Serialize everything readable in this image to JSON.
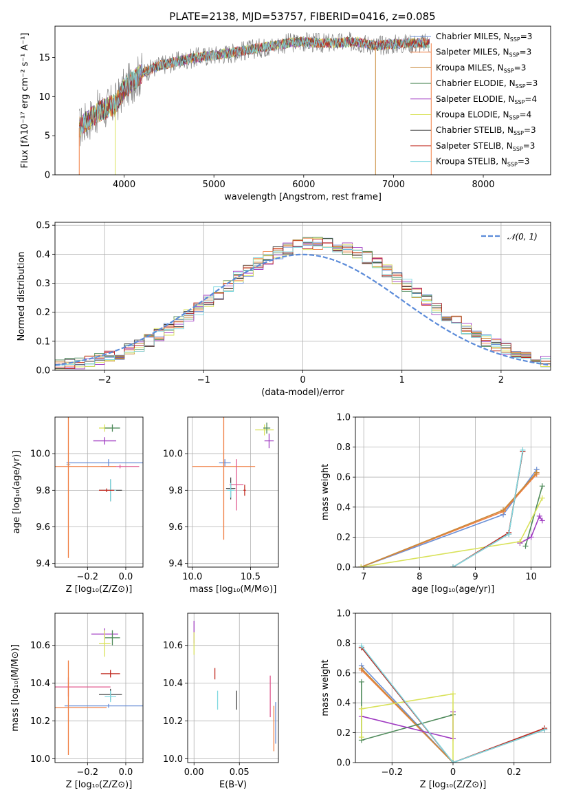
{
  "figure": {
    "title": "PLATE=2138, MJD=53757, FIBERID=0416, z=0.085"
  },
  "chart_data": [
    {
      "id": "spectrum",
      "type": "line",
      "title": "PLATE=2138, MJD=53757, FIBERID=0416, z=0.085",
      "xlabel": "wavelength [Angstrom, rest frame]",
      "ylabel": "Flux [fλ10⁻¹⁷ erg cm⁻² s⁻¹ A⁻¹]",
      "xlim": [
        3230,
        8750
      ],
      "ylim": [
        0,
        19
      ],
      "xticks": [
        4000,
        5000,
        6000,
        7000,
        8000
      ],
      "yticks": [
        0,
        5,
        10,
        15
      ],
      "grid": false,
      "legend_position": "right",
      "series": [
        {
          "name": "Chabrier MILES, N_SSP=3",
          "label_main": "Chabrier MILES, N",
          "label_sub": "SSP",
          "label_tail": "=3",
          "color": "#6a8fd6"
        },
        {
          "name": "Salpeter MILES, N_SSP=3",
          "label_main": "Salpeter MILES, N",
          "label_sub": "SSP",
          "label_tail": "=3",
          "color": "#f07e42"
        },
        {
          "name": "Kroupa MILES, N_SSP=3",
          "label_main": "Kroupa MILES, N",
          "label_sub": "SSP",
          "label_tail": "=3",
          "color": "#c98a3a"
        },
        {
          "name": "Chabrier ELODIE, N_SSP=3",
          "label_main": "Chabrier ELODIE, N",
          "label_sub": "SSP",
          "label_tail": "=3",
          "color": "#4f8a5b"
        },
        {
          "name": "Salpeter ELODIE, N_SSP=4",
          "label_main": "Salpeter ELODIE, N",
          "label_sub": "SSP",
          "label_tail": "=4",
          "color": "#a03cc2"
        },
        {
          "name": "Kroupa ELODIE, N_SSP=4",
          "label_main": "Kroupa ELODIE, N",
          "label_sub": "SSP",
          "label_tail": "=4",
          "color": "#d9e25a"
        },
        {
          "name": "Chabrier STELIB, N_SSP=3",
          "label_main": "Chabrier STELIB, N",
          "label_sub": "SSP",
          "label_tail": "=3",
          "color": "#444444"
        },
        {
          "name": "Salpeter STELIB, N_SSP=3",
          "label_main": "Salpeter STELIB, N",
          "label_sub": "SSP",
          "label_tail": "=3",
          "color": "#c0281f"
        },
        {
          "name": "Kroupa STELIB, N_SSP=3",
          "label_main": "Kroupa STELIB, N",
          "label_sub": "SSP",
          "label_tail": "=3",
          "color": "#7fd8e0"
        }
      ],
      "data_color": "#7f7f7f",
      "continuum": {
        "x": [
          3500,
          3700,
          3900,
          4000,
          4200,
          4400,
          4600,
          4800,
          5000,
          5200,
          5400,
          5600,
          5800,
          6000,
          6200,
          6400,
          6600,
          6800,
          7000,
          7200,
          7400
        ],
        "y": [
          6,
          8,
          9,
          11,
          13,
          14,
          14.5,
          15,
          15.3,
          15.6,
          16,
          16.4,
          16.8,
          17,
          16.8,
          16.9,
          17,
          16.5,
          16.7,
          16.8,
          16.8
        ]
      }
    },
    {
      "id": "residuals",
      "type": "histogram",
      "xlabel": "(data-model)/error",
      "ylabel": "Normed distribution",
      "xlim": [
        -2.5,
        2.5
      ],
      "ylim": [
        0,
        0.51
      ],
      "xticks": [
        -2,
        -1,
        0,
        1,
        2
      ],
      "yticks": [
        0.0,
        0.1,
        0.2,
        0.3,
        0.4,
        0.5
      ],
      "grid": true,
      "legend_position": "top-right",
      "gaussian_label": "𝒩(0, 1)",
      "gaussian_color": "#5b8bd9",
      "bin_width": 0.1
    },
    {
      "id": "age-vs-z",
      "type": "errorbar",
      "xlabel": "Z [log₁₀(Z/Z⊙)]",
      "ylabel": "age  [log₁₀(age/yr)]",
      "xlim": [
        -0.37,
        0.09
      ],
      "ylim": [
        9.38,
        10.2
      ],
      "xticks": [
        -0.2,
        0.0
      ],
      "yticks": [
        9.4,
        9.6,
        9.8,
        10.0
      ],
      "grid": true,
      "points": [
        {
          "x": -0.11,
          "xerr": 0.03,
          "y": 10.14,
          "yerr": 0.02,
          "color": "#d9e25a"
        },
        {
          "x": -0.07,
          "xerr": 0.04,
          "y": 10.14,
          "yerr": 0.02,
          "color": "#4f8a5b"
        },
        {
          "x": -0.11,
          "xerr": 0.06,
          "y": 10.07,
          "yerr": 0.02,
          "color": "#a03cc2"
        },
        {
          "x": -0.09,
          "xerr": 0.22,
          "y": 9.95,
          "yerr": 0.02,
          "color": "#6a8fd6"
        },
        {
          "x": -0.3,
          "xerr": 0.01,
          "y": 9.94,
          "yerr": 0.01,
          "color": "#aaaaaa"
        },
        {
          "x": -0.03,
          "xerr": 0.1,
          "y": 9.93,
          "yerr": 0.01,
          "color": "#e05a8f"
        },
        {
          "x": -0.3,
          "xerr": 0.25,
          "y": 9.93,
          "yerr": 0.5,
          "color": "#f07e42"
        },
        {
          "x": -0.08,
          "xerr": 0.06,
          "y": 9.8,
          "yerr": 0.06,
          "color": "#444444"
        },
        {
          "x": -0.08,
          "xerr": 0.03,
          "y": 9.8,
          "yerr": 0.06,
          "color": "#7fd8e0"
        },
        {
          "x": -0.1,
          "xerr": 0.04,
          "y": 9.8,
          "yerr": 0.01,
          "color": "#c0281f"
        }
      ]
    },
    {
      "id": "age-vs-mass",
      "type": "errorbar",
      "xlabel": "mass [log₁₀(M/M⊙)]",
      "ylabel": "",
      "xlim": [
        9.96,
        10.74
      ],
      "ylim": [
        9.38,
        10.2
      ],
      "xticks": [
        10.0,
        10.5
      ],
      "yticks": [
        9.4,
        9.6,
        9.8,
        10.0
      ],
      "grid": true,
      "points": [
        {
          "x": 10.62,
          "xerr": 0.08,
          "y": 10.13,
          "yerr": 0.03,
          "color": "#d9e25a"
        },
        {
          "x": 10.64,
          "xerr": 0.03,
          "y": 10.14,
          "yerr": 0.03,
          "color": "#4f8a5b"
        },
        {
          "x": 10.66,
          "xerr": 0.04,
          "y": 10.07,
          "yerr": 0.04,
          "color": "#a03cc2"
        },
        {
          "x": 10.28,
          "xerr": 0.05,
          "y": 9.95,
          "yerr": 0.02,
          "color": "#6a8fd6"
        },
        {
          "x": 10.27,
          "xerr": 0.27,
          "y": 9.93,
          "yerr": 0.4,
          "color": "#f07e42"
        },
        {
          "x": 10.38,
          "xerr": 0.06,
          "y": 9.83,
          "yerr": 0.14,
          "color": "#e05a8f"
        },
        {
          "x": 10.33,
          "xerr": 0.04,
          "y": 9.81,
          "yerr": 0.06,
          "color": "#444444"
        },
        {
          "x": 10.33,
          "xerr": 0.03,
          "y": 9.8,
          "yerr": 0.04,
          "color": "#7fd8e0"
        },
        {
          "x": 10.45,
          "xerr": 0.01,
          "y": 9.8,
          "yerr": 0.03,
          "color": "#c0281f"
        }
      ]
    },
    {
      "id": "weight-vs-age",
      "type": "line",
      "xlabel": "age  [log₁₀(age/yr)]",
      "ylabel": "mass weight",
      "xlim": [
        6.85,
        10.35
      ],
      "ylim": [
        0,
        1.0
      ],
      "xticks": [
        7,
        8,
        9,
        10
      ],
      "yticks": [
        0.0,
        0.2,
        0.4,
        0.6,
        0.8,
        1.0
      ],
      "grid": true,
      "series": [
        {
          "name": "Chabrier MILES",
          "color": "#6a8fd6",
          "x": [
            6.95,
            9.5,
            10.1
          ],
          "y": [
            0.0,
            0.35,
            0.65
          ]
        },
        {
          "name": "Salpeter MILES",
          "color": "#f07e42",
          "x": [
            6.95,
            9.5,
            10.1
          ],
          "y": [
            0.0,
            0.37,
            0.62
          ]
        },
        {
          "name": "Kroupa MILES",
          "color": "#c98a3a",
          "x": [
            6.95,
            9.5,
            10.1
          ],
          "y": [
            0.0,
            0.38,
            0.63
          ]
        },
        {
          "name": "Chabrier ELODIE",
          "color": "#4f8a5b",
          "x": [
            9.9,
            10.2
          ],
          "y": [
            0.14,
            0.54
          ]
        },
        {
          "name": "Salpeter ELODIE",
          "color": "#a03cc2",
          "x": [
            9.8,
            10.0,
            10.15,
            10.2
          ],
          "y": [
            0.16,
            0.2,
            0.34,
            0.31
          ]
        },
        {
          "name": "Kroupa ELODIE",
          "color": "#d9e25a",
          "x": [
            6.95,
            9.8,
            10.2
          ],
          "y": [
            0.0,
            0.17,
            0.46
          ]
        },
        {
          "name": "Chabrier STELIB",
          "color": "#444444",
          "x": [
            8.6,
            9.6,
            9.85
          ],
          "y": [
            0.0,
            0.22,
            0.77
          ]
        },
        {
          "name": "Salpeter STELIB",
          "color": "#c0281f",
          "x": [
            8.6,
            9.6,
            9.85
          ],
          "y": [
            0.0,
            0.23,
            0.77
          ]
        },
        {
          "name": "Kroupa STELIB",
          "color": "#7fd8e0",
          "x": [
            8.6,
            9.6,
            9.85
          ],
          "y": [
            0.0,
            0.22,
            0.78
          ]
        }
      ]
    },
    {
      "id": "mass-vs-z",
      "type": "errorbar",
      "xlabel": "Z [log₁₀(Z/Z⊙)]",
      "ylabel": "mass [log₁₀(M/M⊙)]",
      "xlim": [
        -0.37,
        0.09
      ],
      "ylim": [
        9.98,
        10.77
      ],
      "xticks": [
        -0.2,
        0.0
      ],
      "yticks": [
        10.0,
        10.2,
        10.4,
        10.6
      ],
      "grid": true,
      "points": [
        {
          "x": -0.11,
          "xerr": 0.07,
          "y": 10.66,
          "yerr": 0.03,
          "color": "#a03cc2"
        },
        {
          "x": -0.07,
          "xerr": 0.04,
          "y": 10.64,
          "yerr": 0.04,
          "color": "#4f8a5b"
        },
        {
          "x": -0.11,
          "xerr": 0.03,
          "y": 10.61,
          "yerr": 0.07,
          "color": "#d9e25a"
        },
        {
          "x": -0.08,
          "xerr": 0.05,
          "y": 10.45,
          "yerr": 0.02,
          "color": "#c0281f"
        },
        {
          "x": -0.3,
          "xerr": 0.22,
          "y": 10.38,
          "yerr": 0.05,
          "color": "#e05a8f"
        },
        {
          "x": -0.08,
          "xerr": 0.06,
          "y": 10.34,
          "yerr": 0.03,
          "color": "#444444"
        },
        {
          "x": -0.08,
          "xerr": 0.03,
          "y": 10.33,
          "yerr": 0.03,
          "color": "#7fd8e0"
        },
        {
          "x": -0.09,
          "xerr": 0.23,
          "y": 10.28,
          "yerr": 0.01,
          "color": "#6a8fd6"
        },
        {
          "x": -0.3,
          "xerr": 0.2,
          "y": 10.27,
          "yerr": 0.25,
          "color": "#f07e42"
        }
      ]
    },
    {
      "id": "mass-vs-ebv",
      "type": "errorbar",
      "xlabel": "E(B-V)",
      "ylabel": "",
      "xlim": [
        -0.007,
        0.093
      ],
      "ylim": [
        9.98,
        10.77
      ],
      "xticks": [
        0.0,
        0.05
      ],
      "yticks": [
        10.0,
        10.2,
        10.4,
        10.6
      ],
      "grid": true,
      "points": [
        {
          "x": 0.0,
          "xerr": 0.0,
          "y": 10.67,
          "yerr": 0.06,
          "color": "#a03cc2"
        },
        {
          "x": 0.0,
          "xerr": 0.0,
          "y": 10.61,
          "yerr": 0.06,
          "color": "#d9e25a"
        },
        {
          "x": 0.023,
          "xerr": 0.0,
          "y": 10.45,
          "yerr": 0.03,
          "color": "#c0281f"
        },
        {
          "x": 0.026,
          "xerr": 0.0,
          "y": 10.31,
          "yerr": 0.05,
          "color": "#7fd8e0"
        },
        {
          "x": 0.047,
          "xerr": 0.0,
          "y": 10.31,
          "yerr": 0.05,
          "color": "#444444"
        },
        {
          "x": 0.084,
          "xerr": 0.0,
          "y": 10.33,
          "yerr": 0.11,
          "color": "#e05a8f"
        },
        {
          "x": 0.088,
          "xerr": 0.0,
          "y": 10.16,
          "yerr": 0.12,
          "color": "#f07e42"
        },
        {
          "x": 0.09,
          "xerr": 0.0,
          "y": 10.19,
          "yerr": 0.11,
          "color": "#6a8fd6"
        }
      ]
    },
    {
      "id": "weight-vs-z",
      "type": "line",
      "xlabel": "Z [log₁₀(Z/Z⊙)]",
      "ylabel": "mass weight",
      "xlim": [
        -0.32,
        0.32
      ],
      "ylim": [
        0,
        1.0
      ],
      "xticks": [
        -0.2,
        0.0,
        0.2
      ],
      "yticks": [
        0.0,
        0.2,
        0.4,
        0.6,
        0.8,
        1.0
      ],
      "grid": true,
      "series": [
        {
          "name": "Chabrier MILES",
          "color": "#6a8fd6",
          "x": [
            -0.3,
            0.0
          ],
          "y": [
            0.65,
            0.0
          ]
        },
        {
          "name": "Salpeter MILES",
          "color": "#f07e42",
          "x": [
            -0.3,
            0.0
          ],
          "y": [
            0.62,
            0.0
          ]
        },
        {
          "name": "Kroupa MILES",
          "color": "#c98a3a",
          "x": [
            -0.3,
            0.0
          ],
          "y": [
            0.63,
            0.0
          ]
        },
        {
          "name": "Chabrier ELODIE",
          "color": "#4f8a5b",
          "x": [
            -0.3,
            -0.3,
            0.0
          ],
          "y": [
            0.54,
            0.15,
            0.32
          ]
        },
        {
          "name": "Salpeter ELODIE",
          "color": "#a03cc2",
          "x": [
            -0.3,
            0.0,
            0.0
          ],
          "y": [
            0.31,
            0.16,
            0.34
          ]
        },
        {
          "name": "Kroupa ELODIE",
          "color": "#d9e25a",
          "x": [
            -0.3,
            -0.3,
            0.0,
            0.0
          ],
          "y": [
            0.17,
            0.36,
            0.46,
            0.0
          ]
        },
        {
          "name": "Chabrier STELIB",
          "color": "#444444",
          "x": [
            -0.3,
            0.0,
            0.3
          ],
          "y": [
            0.77,
            0.0,
            0.22
          ]
        },
        {
          "name": "Salpeter STELIB",
          "color": "#c0281f",
          "x": [
            -0.3,
            0.0,
            0.3
          ],
          "y": [
            0.77,
            0.0,
            0.23
          ]
        },
        {
          "name": "Kroupa STELIB",
          "color": "#7fd8e0",
          "x": [
            -0.3,
            0.0,
            0.3
          ],
          "y": [
            0.78,
            0.0,
            0.22
          ]
        }
      ]
    }
  ]
}
